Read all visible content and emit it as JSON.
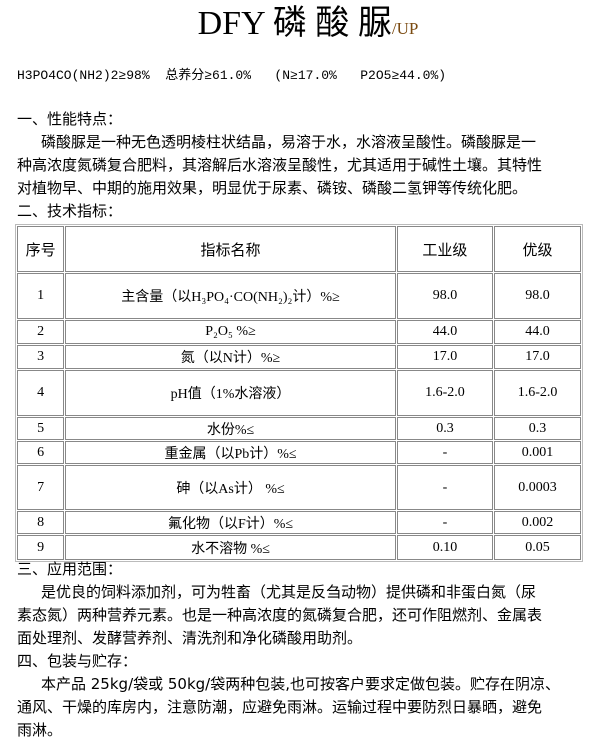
{
  "title": {
    "main": "DFY 磷 酸 脲",
    "suffix": "/UP"
  },
  "formula": "H3PO4CO(NH2)2≥98%  总养分≥61.0%   (N≥17.0%   P2O5≥44.0%)",
  "sections": [
    {
      "heading": "一、性能特点：",
      "lines": [
        "磷酸脲是一种无色透明棱柱状结晶，易溶于水，水溶液呈酸性。磷酸脲是一",
        "种高浓度氮磷复合肥料，其溶解后水溶液呈酸性，尤其适用于碱性土壤。其特性",
        "对植物早、中期的施用效果，明显优于尿素、磷铵、磷酸二氢钾等传统化肥。"
      ]
    },
    {
      "heading": "二、技术指标："
    },
    {
      "heading": "三、应用范围：",
      "lines": [
        "是优良的饲料添加剂，可为牲畜（尤其是反刍动物）提供磷和非蛋白氮（尿",
        "素态氮）两种营养元素。也是一种高浓度的氮磷复合肥，还可作阻燃剂、金属表",
        "面处理剂、发酵营养剂、清洗剂和净化磷酸用助剂。"
      ]
    },
    {
      "heading": "四、包装与贮存：",
      "lines": [
        "本产品 25kg/袋或 50kg/袋两种包装,也可按客户要求定做包装。贮存在阴凉、",
        "通风、干燥的库房内，注意防潮，应避免雨淋。运输过程中要防烈日暴晒，避免",
        "雨淋。"
      ]
    }
  ],
  "table": {
    "headers": [
      "序号",
      "指标名称",
      "工业级",
      "优级"
    ],
    "rows": [
      [
        "1",
        "主含量（以H₃PO₄·CO(NH₂)₂计）%≥",
        "98.0",
        "98.0"
      ],
      [
        "2",
        "P₂O₅  %≥",
        "44.0",
        "44.0"
      ],
      [
        "3",
        "氮（以N计）%≥",
        "17.0",
        "17.0"
      ],
      [
        "4",
        "pH值（1%水溶液）",
        "1.6-2.0",
        "1.6-2.0"
      ],
      [
        "5",
        "水份%≤",
        "0.3",
        "0.3"
      ],
      [
        "6",
        "重金属（以Pb计）%≤",
        "-",
        "0.001"
      ],
      [
        "7",
        "砷（以As计）  %≤",
        "-",
        "0.0003"
      ],
      [
        "8",
        "氟化物（以F计）%≤",
        "-",
        "0.002"
      ],
      [
        "9",
        "水不溶物  %≤",
        "0.10",
        "0.05"
      ]
    ]
  }
}
